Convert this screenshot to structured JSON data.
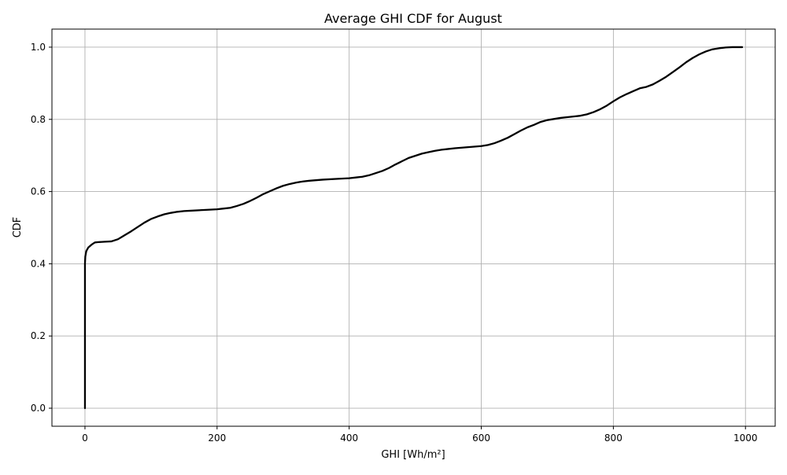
{
  "chart_data": {
    "type": "line",
    "title": "Average GHI CDF for August",
    "xlabel": "GHI [Wh/m²]",
    "ylabel": "CDF",
    "xlim": [
      -50,
      1045
    ],
    "ylim": [
      -0.05,
      1.05
    ],
    "xticks": [
      0,
      200,
      400,
      600,
      800,
      1000
    ],
    "yticks": [
      0.0,
      0.2,
      0.4,
      0.6,
      0.8,
      1.0
    ],
    "xtick_labels": [
      "0",
      "200",
      "400",
      "600",
      "800",
      "1000"
    ],
    "ytick_labels": [
      "0.0",
      "0.2",
      "0.4",
      "0.6",
      "0.8",
      "1.0"
    ],
    "grid": true,
    "line_color": "#000000",
    "grid_color": "#b0b0b0",
    "series": [
      {
        "x": [
          0,
          0,
          0.5,
          2,
          5,
          10,
          15,
          20,
          30,
          40,
          50,
          60,
          70,
          80,
          90,
          100,
          110,
          120,
          130,
          140,
          150,
          160,
          180,
          200,
          210,
          220,
          230,
          240,
          250,
          260,
          270,
          280,
          290,
          300,
          310,
          320,
          330,
          340,
          360,
          380,
          400,
          410,
          420,
          430,
          440,
          450,
          460,
          470,
          480,
          490,
          500,
          510,
          520,
          530,
          540,
          550,
          560,
          580,
          600,
          610,
          620,
          630,
          640,
          650,
          660,
          670,
          680,
          690,
          700,
          710,
          720,
          730,
          740,
          750,
          760,
          770,
          780,
          790,
          800,
          810,
          820,
          830,
          840,
          850,
          860,
          870,
          880,
          890,
          900,
          910,
          920,
          930,
          940,
          950,
          960,
          970,
          980,
          990,
          995
        ],
        "y": [
          0.0,
          0.4,
          0.42,
          0.435,
          0.445,
          0.453,
          0.459,
          0.46,
          0.461,
          0.462,
          0.468,
          0.479,
          0.49,
          0.502,
          0.514,
          0.524,
          0.531,
          0.537,
          0.541,
          0.544,
          0.546,
          0.547,
          0.549,
          0.551,
          0.553,
          0.555,
          0.56,
          0.566,
          0.574,
          0.583,
          0.593,
          0.601,
          0.609,
          0.616,
          0.621,
          0.625,
          0.628,
          0.63,
          0.633,
          0.635,
          0.637,
          0.639,
          0.641,
          0.645,
          0.651,
          0.657,
          0.665,
          0.675,
          0.684,
          0.693,
          0.699,
          0.705,
          0.709,
          0.713,
          0.716,
          0.718,
          0.72,
          0.723,
          0.726,
          0.729,
          0.734,
          0.741,
          0.749,
          0.759,
          0.769,
          0.778,
          0.785,
          0.793,
          0.798,
          0.801,
          0.804,
          0.806,
          0.808,
          0.81,
          0.814,
          0.82,
          0.828,
          0.838,
          0.85,
          0.861,
          0.87,
          0.878,
          0.886,
          0.89,
          0.897,
          0.907,
          0.918,
          0.931,
          0.944,
          0.958,
          0.97,
          0.98,
          0.988,
          0.994,
          0.997,
          0.999,
          1.0,
          1.0,
          1.0
        ]
      }
    ]
  }
}
